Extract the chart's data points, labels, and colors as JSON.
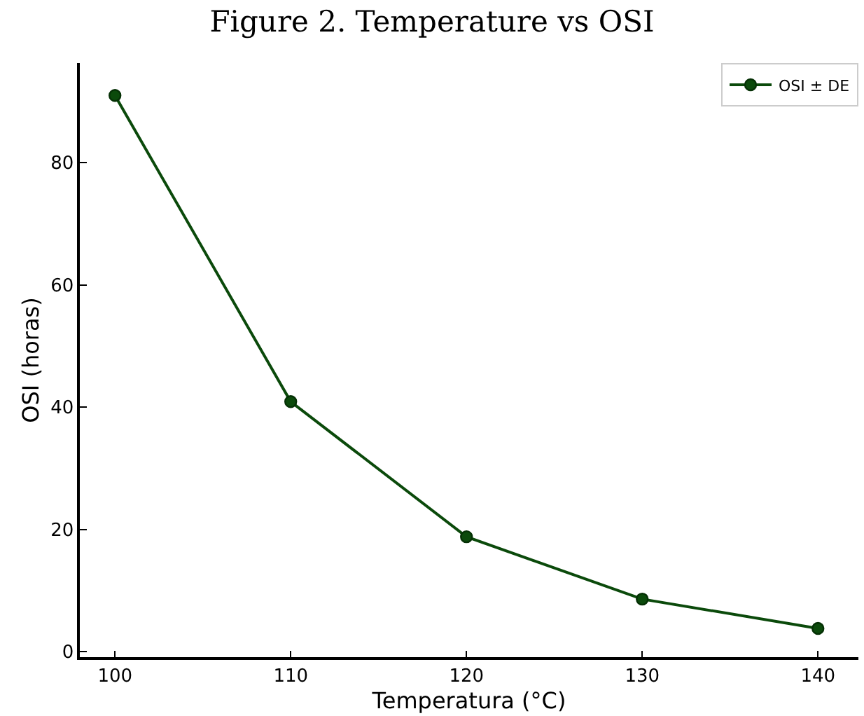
{
  "chart_data": {
    "type": "line",
    "title": "Figure 2. Temperature vs OSI",
    "xlabel": "Temperatura (°C)",
    "ylabel": "OSI (horas)",
    "x": [
      100,
      110,
      120,
      130,
      140
    ],
    "series": [
      {
        "name": "OSI ± DE",
        "color": "#0b4a0b",
        "values": [
          91.0,
          40.9,
          18.8,
          8.6,
          3.8
        ]
      }
    ],
    "xlim": [
      98,
      142.3
    ],
    "ylim": [
      -0.9,
      96.3
    ],
    "xticks": [
      100,
      110,
      120,
      130,
      140
    ],
    "yticks": [
      0,
      20,
      40,
      60,
      80
    ],
    "grid": false,
    "legend": "top right",
    "marker": "circle",
    "line_style": "solid"
  }
}
